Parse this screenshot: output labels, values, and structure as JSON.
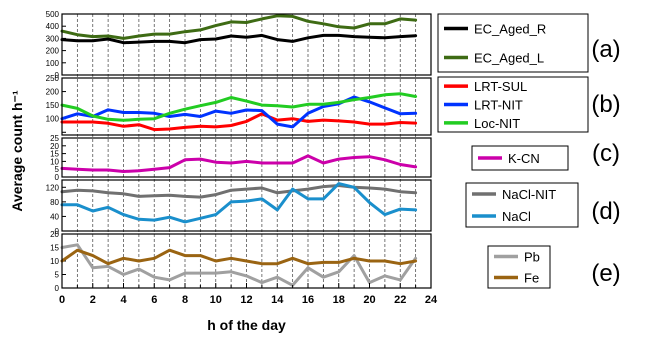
{
  "chart_data": {
    "type": "line",
    "xlabel": "h of the day",
    "ylabel": "Average count h⁻¹",
    "x": [
      0,
      1,
      2,
      3,
      4,
      5,
      6,
      7,
      8,
      9,
      10,
      11,
      12,
      13,
      14,
      15,
      16,
      17,
      18,
      19,
      20,
      21,
      22,
      23
    ],
    "xticks": [
      0,
      2,
      4,
      6,
      8,
      10,
      12,
      14,
      16,
      18,
      20,
      22,
      24
    ],
    "xlim": [
      0,
      24
    ],
    "grid": "vertical dashed lines at each hour",
    "panels": [
      {
        "label": "(a)",
        "ylim": [
          0,
          500
        ],
        "yticks": [
          0,
          100,
          200,
          300,
          400,
          500
        ],
        "legend": "right",
        "series": [
          {
            "name": "EC_Aged_R",
            "color": "#000000",
            "values": [
              290,
              280,
              280,
              295,
              265,
              270,
              275,
              275,
              265,
              290,
              295,
              320,
              310,
              325,
              290,
              275,
              305,
              325,
              325,
              315,
              310,
              305,
              315,
              322
            ]
          },
          {
            "name": "EC_Aged_L",
            "color": "#3e6b14",
            "values": [
              360,
              330,
              315,
              320,
              300,
              320,
              335,
              335,
              355,
              370,
              405,
              435,
              430,
              460,
              485,
              480,
              440,
              420,
              395,
              385,
              420,
              420,
              460,
              450
            ]
          }
        ]
      },
      {
        "label": "(b)",
        "ylim": [
          40,
          250
        ],
        "yticks": [
          50,
          100,
          150,
          200,
          250
        ],
        "ytick_labels": [
          "",
          "100",
          "150",
          "200",
          "250"
        ],
        "legend": "right",
        "series": [
          {
            "name": "LRT-SUL",
            "color": "#ff0000",
            "values": [
              88,
              88,
              88,
              83,
              72,
              78,
              60,
              62,
              68,
              72,
              70,
              75,
              90,
              118,
              95,
              100,
              90,
              95,
              92,
              88,
              80,
              80,
              86,
              84
            ]
          },
          {
            "name": "LRT-NIT",
            "color": "#0033ff",
            "values": [
              100,
              118,
              108,
              133,
              123,
              123,
              120,
              108,
              116,
              108,
              128,
              120,
              132,
              130,
              80,
              70,
              120,
              145,
              155,
              180,
              162,
              140,
              118,
              120
            ]
          },
          {
            "name": "Loc-NIT",
            "color": "#22cc22",
            "values": [
              150,
              138,
              110,
              98,
              94,
              98,
              100,
              120,
              135,
              148,
              160,
              178,
              165,
              150,
              148,
              143,
              153,
              153,
              160,
              170,
              178,
              188,
              192,
              182
            ]
          }
        ]
      },
      {
        "label": "(c)",
        "ylim": [
          0,
          25
        ],
        "yticks": [
          0,
          5,
          10,
          15,
          20,
          25
        ],
        "legend": "right",
        "series": [
          {
            "name": "K-CN",
            "color": "#cc00aa",
            "values": [
              5.5,
              5,
              4.5,
              4.5,
              3.5,
              4,
              5,
              6,
              11,
              11.5,
              9.5,
              9,
              10,
              9,
              9,
              9,
              13.5,
              9,
              11.5,
              12.5,
              13,
              11,
              8,
              6.5
            ]
          }
        ]
      },
      {
        "label": "(d)",
        "ylim": [
          0,
          140
        ],
        "yticks": [
          0,
          40,
          80,
          120
        ],
        "legend": "right",
        "series": [
          {
            "name": "NaCl-NIT",
            "color": "#707070",
            "values": [
              108,
              112,
              110,
              105,
              102,
              95,
              97,
              98,
              95,
              93,
              100,
              112,
              115,
              118,
              105,
              110,
              115,
              122,
              125,
              120,
              118,
              115,
              108,
              105
            ]
          },
          {
            "name": "NaCl",
            "color": "#1a8fcc",
            "values": [
              72,
              72,
              55,
              65,
              45,
              32,
              30,
              38,
              25,
              35,
              45,
              80,
              82,
              88,
              58,
              115,
              88,
              88,
              130,
              120,
              78,
              45,
              60,
              58
            ]
          }
        ]
      },
      {
        "label": "(e)",
        "ylim": [
          0,
          20
        ],
        "yticks": [
          0,
          5,
          10,
          15,
          20
        ],
        "legend": "right",
        "series": [
          {
            "name": "Pb",
            "color": "#a0a0a0",
            "values": [
              15,
              16,
              7.5,
              8,
              5,
              7,
              4,
              3,
              5.5,
              5.5,
              5.5,
              6,
              4.5,
              2,
              4,
              1,
              7.5,
              4,
              6,
              12,
              2,
              4.5,
              3,
              11
            ]
          },
          {
            "name": "Fe",
            "color": "#9a6412",
            "values": [
              10,
              14,
              12,
              9,
              11,
              10,
              11,
              14,
              12,
              12,
              10,
              11,
              10,
              9,
              9,
              11,
              9,
              9.5,
              9.5,
              11,
              10,
              10,
              9,
              10
            ]
          }
        ]
      }
    ]
  }
}
